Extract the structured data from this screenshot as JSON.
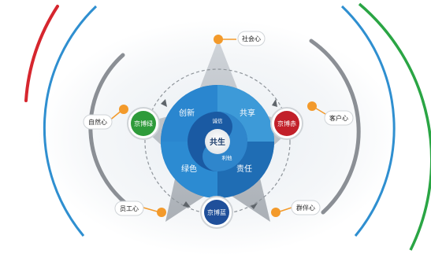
{
  "center": {
    "label": "共生"
  },
  "core_tags": {
    "top": "诚信",
    "bottom": "利他"
  },
  "petals": [
    {
      "id": "innovation",
      "label": "创新"
    },
    {
      "id": "sharing",
      "label": "共享"
    },
    {
      "id": "green",
      "label": "绿色"
    },
    {
      "id": "responsibility",
      "label": "责任"
    }
  ],
  "nodes": {
    "green": {
      "label": "京博绿",
      "color": "#2e9b3a"
    },
    "red": {
      "label": "京博赤",
      "color": "#c2202a"
    },
    "blue": {
      "label": "京博蓝",
      "color": "#1f4f9a"
    }
  },
  "hearts": [
    {
      "id": "society",
      "label": "社会心"
    },
    {
      "id": "customer",
      "label": "客户心"
    },
    {
      "id": "nature",
      "label": "自然心"
    },
    {
      "id": "employee",
      "label": "员工心"
    },
    {
      "id": "partner",
      "label": "群伴心"
    }
  ],
  "colors": {
    "accent_orange": "#f39a2b",
    "ring_red": "#d6262e",
    "ring_blue": "#2f8fd0",
    "ring_green": "#2aa544",
    "ring_gray": "#8b8f95",
    "petal_blue": "#2e8fd0"
  }
}
